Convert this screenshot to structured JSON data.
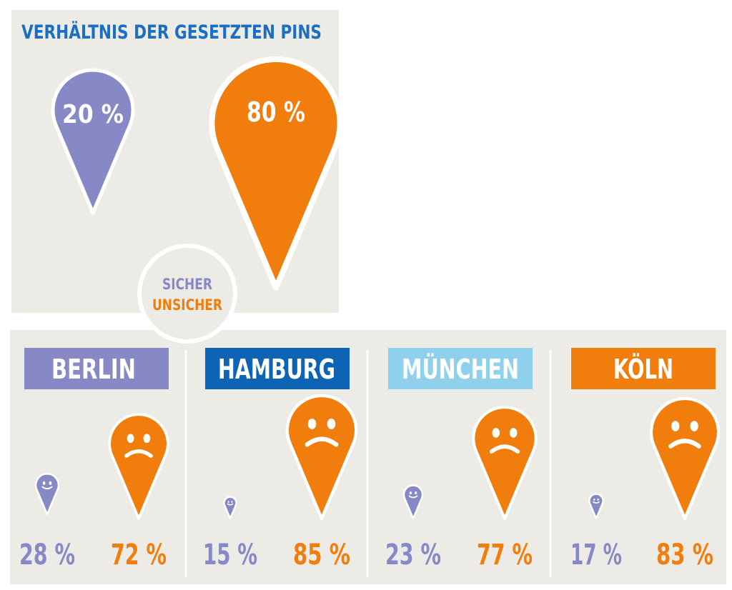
{
  "colors": {
    "sicher": "#8789c6",
    "unsicher": "#f07d0c",
    "title_blue": "#1a6fc2",
    "panel_bg": "#ecebe6",
    "berlin": "#8789c6",
    "hamburg": "#0e64b4",
    "muenchen": "#8fd0ec",
    "koeln": "#f07d0c"
  },
  "chart_data": [
    {
      "type": "proportional-pins",
      "title": "VERHÄLTNIS DER GESETZTEN PINS",
      "legend": [
        "SICHER",
        "UNSICHER"
      ],
      "series": [
        {
          "name": "SICHER",
          "value": 20,
          "label": "20 %"
        },
        {
          "name": "UNSICHER",
          "value": 80,
          "label": "80 %"
        }
      ]
    },
    {
      "type": "proportional-pins",
      "cities": [
        {
          "name": "BERLIN",
          "sicher": 28,
          "unsicher": 72,
          "sicher_label": "28 %",
          "unsicher_label": "72 %"
        },
        {
          "name": "HAMBURG",
          "sicher": 15,
          "unsicher": 85,
          "sicher_label": "15 %",
          "unsicher_label": "85 %"
        },
        {
          "name": "MÜNCHEN",
          "sicher": 23,
          "unsicher": 77,
          "sicher_label": "23 %",
          "unsicher_label": "77 %"
        },
        {
          "name": "KÖLN",
          "sicher": 17,
          "unsicher": 83,
          "sicher_label": "17 %",
          "unsicher_label": "83 %"
        }
      ]
    }
  ]
}
